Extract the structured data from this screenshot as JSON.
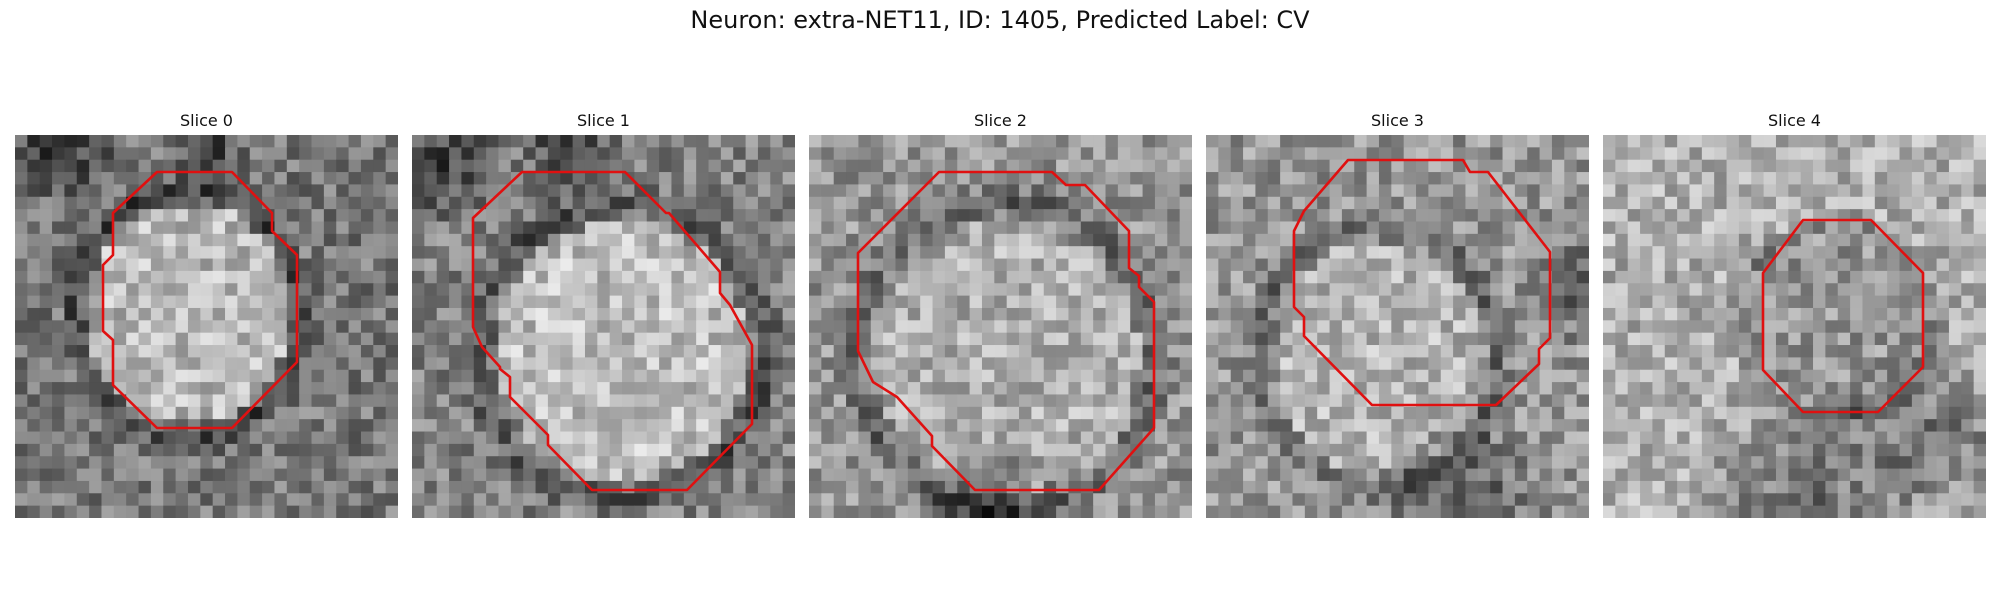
{
  "figure": {
    "title": "Neuron: extra-NET11, ID: 1405, Predicted Label: CV",
    "contour_color": "#e01010"
  },
  "panels": [
    {
      "title": "Slice 0"
    },
    {
      "title": "Slice 1"
    },
    {
      "title": "Slice 2"
    },
    {
      "title": "Slice 3"
    },
    {
      "title": "Slice 4"
    }
  ]
}
